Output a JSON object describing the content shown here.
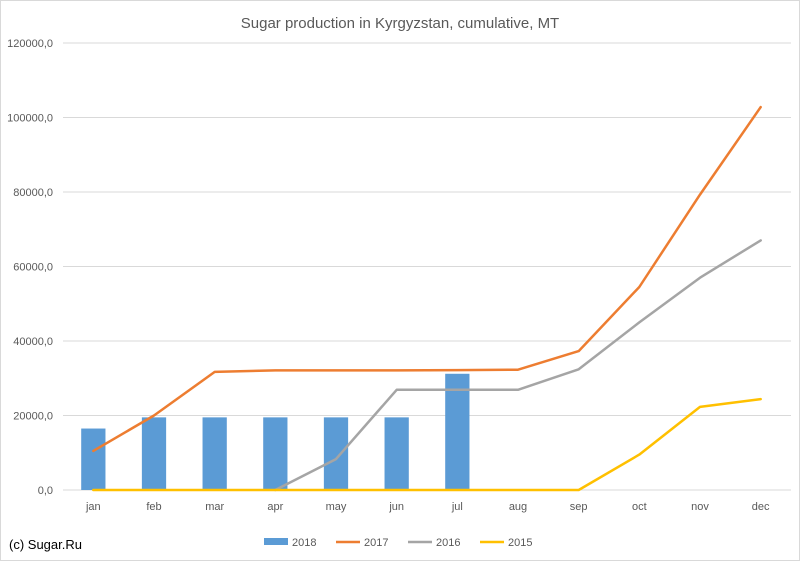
{
  "copyright": "(c) Sugar.Ru",
  "chart_data": {
    "type": "bar",
    "title": "Sugar production in Kyrgyzstan, cumulative, MT",
    "xlabel": "",
    "ylabel": "",
    "categories": [
      "jan",
      "feb",
      "mar",
      "apr",
      "may",
      "jun",
      "jul",
      "aug",
      "sep",
      "oct",
      "nov",
      "dec"
    ],
    "ylim": [
      0,
      120000
    ],
    "yticks": [
      0,
      20000,
      40000,
      60000,
      80000,
      100000,
      120000
    ],
    "ytick_labels": [
      "0,0",
      "20000,0",
      "40000,0",
      "60000,0",
      "80000,0",
      "100000,0",
      "120000,0"
    ],
    "grid": true,
    "legend_position": "bottom",
    "series": [
      {
        "name": "2018",
        "type": "bar",
        "color": "#5b9bd5",
        "values": [
          16500,
          19500,
          19500,
          19500,
          19500,
          19500,
          31200,
          null,
          null,
          null,
          null,
          null
        ]
      },
      {
        "name": "2017",
        "type": "line",
        "color": "#ed7d31",
        "values": [
          10500,
          20000,
          31700,
          32100,
          32100,
          32100,
          32200,
          32300,
          37300,
          54500,
          79300,
          102800
        ]
      },
      {
        "name": "2016",
        "type": "line",
        "color": "#a5a5a5",
        "values": [
          null,
          null,
          null,
          0,
          8300,
          26900,
          26900,
          26900,
          32400,
          45000,
          57000,
          67000
        ]
      },
      {
        "name": "2015",
        "type": "line",
        "color": "#ffc000",
        "values": [
          0,
          0,
          0,
          0,
          0,
          0,
          0,
          0,
          0,
          9500,
          22300,
          24400
        ]
      }
    ]
  }
}
